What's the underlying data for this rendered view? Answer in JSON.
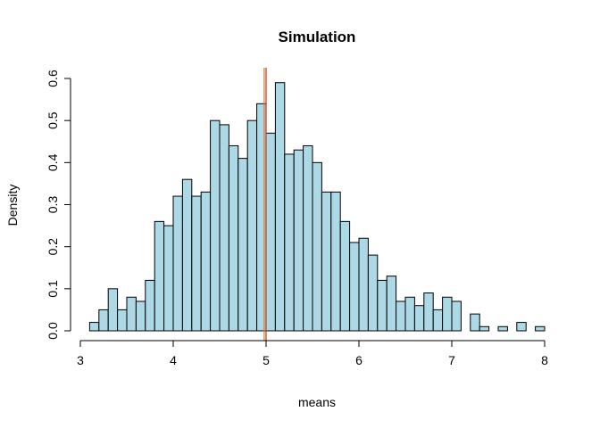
{
  "chart_data": {
    "type": "bar",
    "title": "Simulation",
    "xlabel": "means",
    "ylabel": "Density",
    "xlim": [
      3,
      8
    ],
    "ylim": [
      0,
      0.6
    ],
    "x_ticks": [
      3,
      4,
      5,
      6,
      7,
      8
    ],
    "y_ticks": [
      0.0,
      0.1,
      0.2,
      0.3,
      0.4,
      0.5,
      0.6
    ],
    "y_tick_labels": [
      "0.0",
      "0.1",
      "0.2",
      "0.3",
      "0.4",
      "0.5",
      "0.6"
    ],
    "bin_width": 0.1,
    "bin_starts": [
      3.1,
      3.2,
      3.3,
      3.4,
      3.5,
      3.6,
      3.7,
      3.8,
      3.9,
      4.0,
      4.1,
      4.2,
      4.3,
      4.4,
      4.5,
      4.6,
      4.7,
      4.8,
      4.9,
      5.0,
      5.1,
      5.2,
      5.3,
      5.4,
      5.5,
      5.6,
      5.7,
      5.8,
      5.9,
      6.0,
      6.1,
      6.2,
      6.3,
      6.4,
      6.5,
      6.6,
      6.7,
      6.8,
      6.9,
      7.0,
      7.1,
      7.2,
      7.3,
      7.4,
      7.5,
      7.6,
      7.7,
      7.8,
      7.9
    ],
    "values": [
      0.02,
      0.05,
      0.1,
      0.05,
      0.08,
      0.07,
      0.12,
      0.26,
      0.25,
      0.32,
      0.36,
      0.32,
      0.33,
      0.5,
      0.49,
      0.44,
      0.41,
      0.5,
      0.54,
      0.47,
      0.59,
      0.42,
      0.43,
      0.44,
      0.4,
      0.33,
      0.33,
      0.26,
      0.21,
      0.22,
      0.18,
      0.12,
      0.13,
      0.07,
      0.08,
      0.06,
      0.09,
      0.05,
      0.08,
      0.07,
      0.0,
      0.04,
      0.01,
      0.0,
      0.01,
      0.0,
      0.02,
      0.0,
      0.01
    ],
    "vlines": [
      {
        "x": 4.98,
        "color": "#e6761a"
      },
      {
        "x": 5.0,
        "color": "#b03a2e"
      }
    ],
    "bar_color": "#add8e6",
    "grid": false
  }
}
